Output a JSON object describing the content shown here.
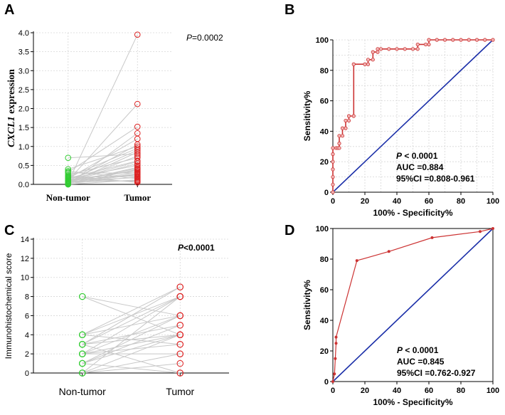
{
  "chart_data": [
    {
      "panel": "A",
      "type": "scatter",
      "subtype": "paired-dot",
      "ylabel_italic": "CXCL1",
      "ylabel_rest": " expression",
      "categories": [
        "Non-tumor",
        "Tumor"
      ],
      "ylim": [
        0,
        4
      ],
      "yticks": [
        "0.0",
        "0.5",
        "1.0",
        "1.5",
        "2.0",
        "2.5",
        "3.0",
        "3.5",
        "4.0"
      ],
      "p_italic": "P",
      "p_rest": "=0.0002",
      "colors": {
        "Non-tumor": "#33cc33",
        "Tumor": "#dd2222",
        "line": "#c8c8c8"
      },
      "pairs": [
        [
          0.05,
          3.95
        ],
        [
          0.1,
          2.12
        ],
        [
          0.32,
          1.52
        ],
        [
          0.0,
          1.35
        ],
        [
          0.15,
          1.2
        ],
        [
          0.05,
          1.05
        ],
        [
          0.4,
          1.0
        ],
        [
          0.2,
          0.95
        ],
        [
          0.1,
          0.9
        ],
        [
          0.02,
          0.85
        ],
        [
          0.7,
          0.8
        ],
        [
          0.05,
          0.75
        ],
        [
          0.25,
          0.7
        ],
        [
          0.1,
          0.6
        ],
        [
          0.08,
          0.55
        ],
        [
          0.15,
          0.5
        ],
        [
          0.03,
          0.45
        ],
        [
          0.0,
          0.4
        ],
        [
          0.12,
          0.35
        ],
        [
          0.3,
          0.3
        ],
        [
          0.05,
          0.28
        ],
        [
          0.1,
          0.25
        ],
        [
          0.18,
          0.22
        ],
        [
          0.02,
          0.2
        ],
        [
          0.08,
          0.18
        ],
        [
          0.35,
          0.15
        ],
        [
          0.0,
          0.12
        ],
        [
          0.06,
          0.1
        ],
        [
          0.14,
          0.08
        ],
        [
          0.22,
          0.05
        ],
        [
          0.04,
          0.32
        ],
        [
          0.09,
          0.38
        ],
        [
          0.01,
          0.27
        ],
        [
          0.16,
          0.62
        ],
        [
          0.07,
          0.42
        ]
      ]
    },
    {
      "panel": "B",
      "type": "line",
      "subtype": "roc",
      "xlabel": "100% - Specificity%",
      "ylabel": "Sensitivity%",
      "xlim": [
        0,
        100
      ],
      "ylim": [
        0,
        100
      ],
      "xticks": [
        "0",
        "20",
        "40",
        "60",
        "80",
        "100"
      ],
      "yticks": [
        "0",
        "20",
        "40",
        "60",
        "80",
        "100"
      ],
      "stats": [
        "P < 0.0001",
        "AUC =0.884",
        "95%CI =0.808-0.961"
      ],
      "colors": {
        "roc": "#cc3333",
        "diagonal": "#1a2ea8"
      },
      "roc_points": [
        [
          0,
          0
        ],
        [
          0,
          5
        ],
        [
          0,
          10
        ],
        [
          0,
          15
        ],
        [
          0,
          20
        ],
        [
          0,
          25
        ],
        [
          0,
          29
        ],
        [
          2,
          29
        ],
        [
          3,
          29
        ],
        [
          4,
          29
        ],
        [
          4,
          32
        ],
        [
          4,
          37
        ],
        [
          6,
          37
        ],
        [
          6,
          42
        ],
        [
          8,
          42
        ],
        [
          8,
          47
        ],
        [
          10,
          47
        ],
        [
          10,
          50
        ],
        [
          13,
          50
        ],
        [
          13,
          84
        ],
        [
          20,
          84
        ],
        [
          22,
          84
        ],
        [
          22,
          87
        ],
        [
          25,
          87
        ],
        [
          25,
          92
        ],
        [
          28,
          92
        ],
        [
          28,
          94
        ],
        [
          30,
          94
        ],
        [
          35,
          94
        ],
        [
          40,
          94
        ],
        [
          45,
          94
        ],
        [
          50,
          94
        ],
        [
          53,
          94
        ],
        [
          53,
          97
        ],
        [
          58,
          97
        ],
        [
          60,
          97
        ],
        [
          60,
          100
        ],
        [
          65,
          100
        ],
        [
          70,
          100
        ],
        [
          75,
          100
        ],
        [
          80,
          100
        ],
        [
          85,
          100
        ],
        [
          90,
          100
        ],
        [
          95,
          100
        ],
        [
          100,
          100
        ]
      ]
    },
    {
      "panel": "C",
      "type": "scatter",
      "subtype": "paired-dot",
      "ylabel": "Immunohistochemical score",
      "categories": [
        "Non-tumor",
        "Tumor"
      ],
      "ylim": [
        0,
        14
      ],
      "yticks": [
        "0",
        "2",
        "4",
        "6",
        "8",
        "10",
        "12",
        "14"
      ],
      "p_label": "P<0.0001",
      "colors": {
        "Non-tumor": "#33cc33",
        "Tumor": "#dd2222",
        "line": "#c8c8c8"
      },
      "pairs": [
        [
          8,
          6
        ],
        [
          8,
          4
        ],
        [
          4,
          9
        ],
        [
          4,
          8
        ],
        [
          4,
          6
        ],
        [
          3,
          9
        ],
        [
          3,
          8
        ],
        [
          3,
          5
        ],
        [
          3,
          4
        ],
        [
          2,
          8
        ],
        [
          2,
          6
        ],
        [
          2,
          3
        ],
        [
          2,
          2
        ],
        [
          1,
          6
        ],
        [
          1,
          5
        ],
        [
          1,
          4
        ],
        [
          1,
          0
        ],
        [
          0,
          8
        ],
        [
          0,
          4
        ],
        [
          0,
          2
        ],
        [
          0,
          1
        ],
        [
          4,
          3
        ],
        [
          3,
          0
        ],
        [
          2,
          4
        ]
      ]
    },
    {
      "panel": "D",
      "type": "line",
      "subtype": "roc",
      "xlabel": "100% - Specificity%",
      "ylabel": "Sensitivity%",
      "xlim": [
        0,
        100
      ],
      "ylim": [
        0,
        100
      ],
      "xticks": [
        "0",
        "20",
        "40",
        "60",
        "80",
        "100"
      ],
      "yticks": [
        "0",
        "20",
        "40",
        "60",
        "80",
        "100"
      ],
      "stats": [
        "P < 0.0001",
        "AUC =0.845",
        "95%CI =0.762-0.927"
      ],
      "colors": {
        "roc": "#cc3333",
        "diagonal": "#1a2ea8"
      },
      "roc_points": [
        [
          0,
          0
        ],
        [
          1,
          5
        ],
        [
          1.5,
          15
        ],
        [
          2,
          25
        ],
        [
          2,
          29
        ],
        [
          15,
          79
        ],
        [
          35,
          85
        ],
        [
          62,
          94
        ],
        [
          92,
          98
        ],
        [
          100,
          100
        ]
      ]
    }
  ]
}
